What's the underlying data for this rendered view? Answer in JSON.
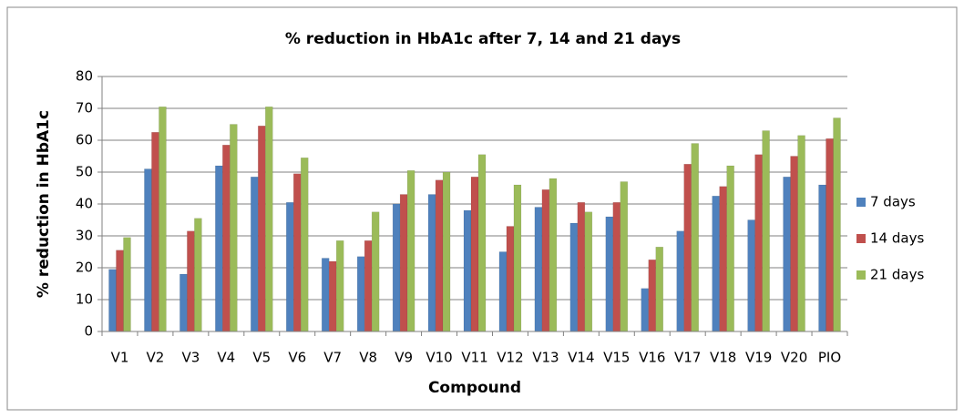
{
  "chart_data": {
    "type": "bar",
    "title": "% reduction in HbA1c after 7, 14 and 21 days",
    "x_label": "Compound",
    "y_label": "% reduction in HbA1c",
    "categories": [
      "V1",
      "V2",
      "V3",
      "V4",
      "V5",
      "V6",
      "V7",
      "V8",
      "V9",
      "V10",
      "V11",
      "V12",
      "V13",
      "V14",
      "V15",
      "V16",
      "V17",
      "V18",
      "V19",
      "V20",
      "PIO"
    ],
    "series": [
      {
        "name": "7 days",
        "color": "#4f81bd",
        "values": [
          19.5,
          51,
          18,
          52,
          48.5,
          40.5,
          23,
          23.5,
          40,
          43,
          38,
          25,
          39,
          34,
          36,
          13.5,
          31.5,
          42.5,
          35,
          48.5,
          46
        ]
      },
      {
        "name": "14 days",
        "color": "#c0504d",
        "values": [
          25.5,
          62.5,
          31.5,
          58.5,
          64.5,
          49.5,
          22,
          28.5,
          43,
          47.5,
          48.5,
          33,
          44.5,
          40.5,
          40.5,
          22.5,
          52.5,
          45.5,
          55.5,
          55,
          60.5
        ]
      },
      {
        "name": "21 days",
        "color": "#9bbb59",
        "values": [
          29.5,
          70.5,
          35.5,
          65,
          70.5,
          54.5,
          28.5,
          37.5,
          50.5,
          50,
          55.5,
          46,
          48,
          37.5,
          47,
          26.5,
          59,
          52,
          63,
          61.5,
          67
        ]
      }
    ],
    "ylim": [
      0,
      80
    ],
    "yticks": [
      0,
      10,
      20,
      30,
      40,
      50,
      60,
      70,
      80
    ],
    "grid": true,
    "legend": "right"
  }
}
